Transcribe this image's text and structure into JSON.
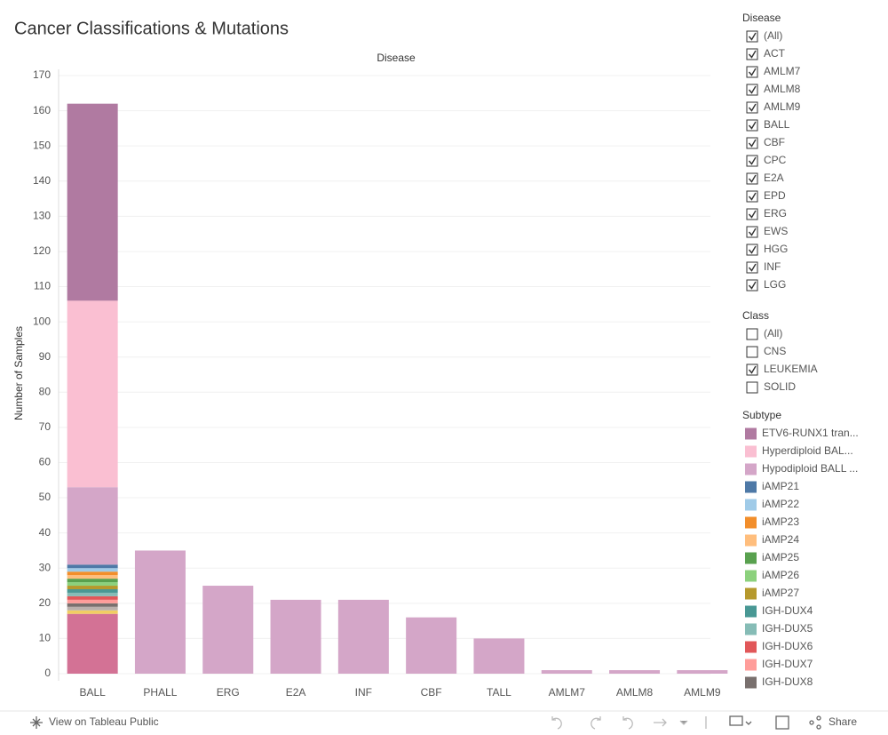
{
  "chart_data": {
    "type": "bar",
    "stacked": true,
    "title": "Cancer Classifications & Mutations",
    "x_label": "Disease",
    "y_label": "Number of Samples",
    "categories": [
      "BALL",
      "PHALL",
      "ERG",
      "E2A",
      "INF",
      "CBF",
      "TALL",
      "AMLM7",
      "AMLM8",
      "AMLM9"
    ],
    "ylim": [
      0,
      170
    ],
    "yticks": [
      0,
      10,
      20,
      30,
      40,
      50,
      60,
      70,
      80,
      90,
      100,
      110,
      120,
      130,
      140,
      150,
      160,
      170
    ],
    "grid": true,
    "legend_title": "Subtype",
    "series": [
      {
        "name": "ETV6-RUNX1 tran...",
        "color": "#b07aa1",
        "values": [
          56,
          0,
          0,
          0,
          0,
          0,
          0,
          0,
          0,
          0
        ]
      },
      {
        "name": "Hyperdiploid BAL...",
        "color": "#fabfd2",
        "values": [
          53,
          0,
          0,
          0,
          0,
          0,
          0,
          0,
          0,
          0
        ]
      },
      {
        "name": "Hypodiploid BALL ...",
        "color": "#d4a6c8",
        "values": [
          22,
          0,
          0,
          0,
          0,
          0,
          0,
          0,
          0,
          0
        ]
      },
      {
        "name": "iAMP21",
        "color": "#4e79a7",
        "values": [
          1,
          0,
          0,
          0,
          0,
          0,
          0,
          0,
          0,
          0
        ]
      },
      {
        "name": "iAMP22",
        "color": "#a0cbe8",
        "values": [
          1,
          0,
          0,
          0,
          0,
          0,
          0,
          0,
          0,
          0
        ]
      },
      {
        "name": "iAMP23",
        "color": "#f28e2b",
        "values": [
          1,
          0,
          0,
          0,
          0,
          0,
          0,
          0,
          0,
          0
        ]
      },
      {
        "name": "iAMP24",
        "color": "#ffbe7d",
        "values": [
          1,
          0,
          0,
          0,
          0,
          0,
          0,
          0,
          0,
          0
        ]
      },
      {
        "name": "iAMP25",
        "color": "#59a14f",
        "values": [
          1,
          0,
          0,
          0,
          0,
          0,
          0,
          0,
          0,
          0
        ]
      },
      {
        "name": "iAMP26",
        "color": "#8cd17d",
        "values": [
          1,
          0,
          0,
          0,
          0,
          0,
          0,
          0,
          0,
          0
        ]
      },
      {
        "name": "iAMP27",
        "color": "#b6992d",
        "values": [
          1,
          0,
          0,
          0,
          0,
          0,
          0,
          0,
          0,
          0
        ]
      },
      {
        "name": "IGH-DUX4",
        "color": "#499894",
        "values": [
          1,
          0,
          0,
          0,
          0,
          0,
          0,
          0,
          0,
          0
        ]
      },
      {
        "name": "IGH-DUX5",
        "color": "#86bcb6",
        "values": [
          1,
          0,
          0,
          0,
          0,
          0,
          0,
          0,
          0,
          0
        ]
      },
      {
        "name": "IGH-DUX6",
        "color": "#e15759",
        "values": [
          1,
          0,
          0,
          0,
          0,
          0,
          0,
          0,
          0,
          0
        ]
      },
      {
        "name": "IGH-DUX7",
        "color": "#ff9d9a",
        "values": [
          1,
          0,
          0,
          0,
          0,
          0,
          0,
          0,
          0,
          0
        ]
      },
      {
        "name": "IGH-DUX8",
        "color": "#79706e",
        "values": [
          1,
          0,
          0,
          0,
          0,
          0,
          0,
          0,
          0,
          0
        ]
      },
      {
        "name": null,
        "color": "#bab0ac",
        "values": [
          1,
          0,
          0,
          0,
          0,
          0,
          0,
          0,
          0,
          0
        ]
      },
      {
        "name": null,
        "color": "#f1ce63",
        "values": [
          1,
          0,
          0,
          0,
          0,
          0,
          0,
          0,
          0,
          0
        ]
      },
      {
        "name": null,
        "color": "#d37295",
        "values": [
          17,
          0,
          0,
          0,
          0,
          0,
          0,
          0,
          0,
          0
        ]
      },
      {
        "name": null,
        "color": "#d4a6c8",
        "values": [
          0,
          35,
          25,
          21,
          21,
          16,
          10,
          1,
          1,
          1
        ]
      }
    ]
  },
  "filters": [
    {
      "title": "Disease",
      "items": [
        {
          "label": "(All)",
          "checked": true
        },
        {
          "label": "ACT",
          "checked": true
        },
        {
          "label": "AMLM7",
          "checked": true
        },
        {
          "label": "AMLM8",
          "checked": true
        },
        {
          "label": "AMLM9",
          "checked": true
        },
        {
          "label": "BALL",
          "checked": true
        },
        {
          "label": "CBF",
          "checked": true
        },
        {
          "label": "CPC",
          "checked": true
        },
        {
          "label": "E2A",
          "checked": true
        },
        {
          "label": "EPD",
          "checked": true
        },
        {
          "label": "ERG",
          "checked": true
        },
        {
          "label": "EWS",
          "checked": true
        },
        {
          "label": "HGG",
          "checked": true
        },
        {
          "label": "INF",
          "checked": true
        },
        {
          "label": "LGG",
          "checked": true
        }
      ]
    },
    {
      "title": "Class",
      "items": [
        {
          "label": "(All)",
          "checked": false
        },
        {
          "label": "CNS",
          "checked": false
        },
        {
          "label": "LEUKEMIA",
          "checked": true
        },
        {
          "label": "SOLID",
          "checked": false
        }
      ]
    }
  ],
  "footer": {
    "view_link": "View on Tableau Public",
    "share": "Share"
  }
}
